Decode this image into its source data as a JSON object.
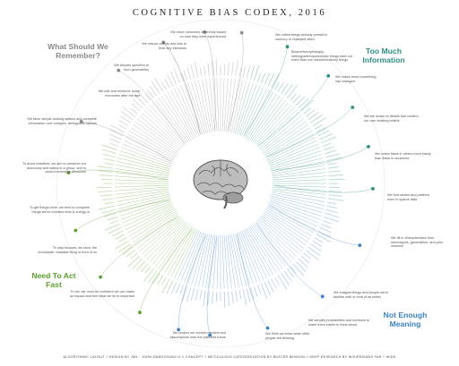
{
  "title": "COGNITIVE BIAS CODEX, 2016",
  "quadrants": [
    {
      "label": "What Should We Remember?",
      "color": "#8a8a8a"
    },
    {
      "label": "Too Much Information",
      "color": "#2f8f84"
    },
    {
      "label": "Need To Act Fast",
      "color": "#5aa02c"
    },
    {
      "label": "Not Enough Meaning",
      "color": "#3d82c4"
    }
  ],
  "notes": {
    "remember": [
      "We store memories differently based on how they were experienced",
      "We reduce events and lists to their key elements",
      "We discard specifics to form generalities",
      "We edit and reinforce some memories after the fact"
    ],
    "too_much": [
      "We notice things already primed in memory or repeated often",
      "Bizarre/funny/visually-striking/anthropomorphic things stick out more than non-bizarre/unfunny things",
      "We notice when something has changed",
      "We are drawn to details that confirm our own existing beliefs",
      "We notice flaws in others more easily than flaws in ourselves"
    ],
    "act_fast": [
      "We favor simple-looking options and complete information over complex, ambiguous options",
      "To avoid mistakes, we aim to preserve our autonomy and status in a group, and to avoid irreversible decisions",
      "To get things done, we tend to complete things we've invested time & energy in",
      "To stay focused, we favor the immediate, relatable thing in front of us",
      "To act, we must be confident we can make an impact and feel what we do is important"
    ],
    "meaning": [
      "We find stories and patterns even in sparse data",
      "We fill in characteristics from stereotypes, generalities, and prior histories",
      "We imagine things and people we're familiar with or fond of as better",
      "We simplify probabilities and numbers to make them easier to think about",
      "We think we know what other people are thinking",
      "We project our current mindset and assumptions onto the past and future"
    ]
  },
  "colors": {
    "gray": "#8a8a8a",
    "teal": "#2f8f84",
    "green": "#5aa02c",
    "blue": "#3d82c4"
  },
  "footer": "ALGORITHMIC LAYOUT + DESIGN BY JM3 · JOHN MANOOGIAN III // CONCEPT + METICULOUS CATEGORIZATION BY BUSTER BENSON // DEEP RESEARCH BY WIKIPEDIANS FAR + WIDE"
}
